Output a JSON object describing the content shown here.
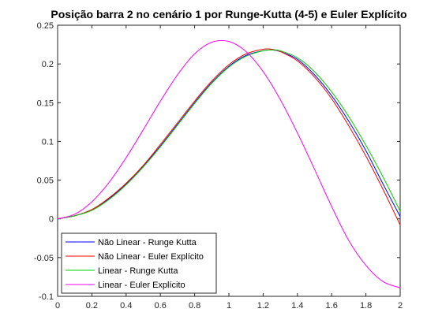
{
  "chart_data": {
    "type": "line",
    "title": "Posição barra 2 no cenário 1 por Runge-Kutta (4-5) e Euler Explícito",
    "xlabel": "",
    "ylabel": "",
    "xlim": [
      0,
      2
    ],
    "ylim": [
      -0.1,
      0.25
    ],
    "xticks": [
      0,
      0.2,
      0.4,
      0.6,
      0.8,
      1,
      1.2,
      1.4,
      1.6,
      1.8,
      2
    ],
    "xtick_labels": [
      "0",
      "0.2",
      "0.4",
      "0.6",
      "0.8",
      "1",
      "1.2",
      "1.4",
      "1.6",
      "1.8",
      "2"
    ],
    "yticks": [
      -0.1,
      -0.05,
      0,
      0.05,
      0.1,
      0.15,
      0.2,
      0.25
    ],
    "ytick_labels": [
      "-0.1",
      "-0.05",
      "0",
      "0.05",
      "0.1",
      "0.15",
      "0.2",
      "0.25"
    ],
    "grid": false,
    "legend_position": "bottom-left",
    "series": [
      {
        "name": "Não Linear - Runge Kutta",
        "color": "#0000ff",
        "x": [
          0,
          0.1,
          0.2,
          0.3,
          0.4,
          0.5,
          0.6,
          0.7,
          0.8,
          0.9,
          1.0,
          1.1,
          1.2,
          1.25,
          1.3,
          1.4,
          1.5,
          1.6,
          1.7,
          1.8,
          1.9,
          2.0
        ],
        "y": [
          0,
          0.004,
          0.012,
          0.026,
          0.045,
          0.068,
          0.094,
          0.122,
          0.15,
          0.176,
          0.197,
          0.211,
          0.217,
          0.218,
          0.216,
          0.206,
          0.186,
          0.159,
          0.126,
          0.088,
          0.045,
          0.003
        ]
      },
      {
        "name": "Não Linear - Euler Explícito",
        "color": "#ff0000",
        "x": [
          0,
          0.1,
          0.2,
          0.3,
          0.4,
          0.5,
          0.6,
          0.7,
          0.8,
          0.9,
          1.0,
          1.1,
          1.2,
          1.25,
          1.3,
          1.4,
          1.5,
          1.6,
          1.7,
          1.8,
          1.9,
          2.0
        ],
        "y": [
          0,
          0.004,
          0.012,
          0.027,
          0.046,
          0.069,
          0.096,
          0.124,
          0.152,
          0.178,
          0.199,
          0.213,
          0.219,
          0.219,
          0.216,
          0.204,
          0.183,
          0.155,
          0.12,
          0.081,
          0.038,
          -0.008
        ]
      },
      {
        "name": "Linear - Runge Kutta",
        "color": "#00cc00",
        "x": [
          0,
          0.1,
          0.2,
          0.3,
          0.4,
          0.5,
          0.6,
          0.7,
          0.8,
          0.9,
          1.0,
          1.1,
          1.2,
          1.25,
          1.3,
          1.4,
          1.5,
          1.6,
          1.7,
          1.8,
          1.9,
          2.0
        ],
        "y": [
          0,
          0.004,
          0.011,
          0.025,
          0.044,
          0.067,
          0.093,
          0.121,
          0.149,
          0.175,
          0.196,
          0.21,
          0.217,
          0.218,
          0.217,
          0.208,
          0.19,
          0.164,
          0.132,
          0.095,
          0.054,
          0.01
        ]
      },
      {
        "name": "Linear - Euler Explícito",
        "color": "#ff00ff",
        "x": [
          0,
          0.1,
          0.2,
          0.3,
          0.4,
          0.5,
          0.6,
          0.7,
          0.8,
          0.9,
          1.0,
          1.1,
          1.2,
          1.3,
          1.4,
          1.5,
          1.6,
          1.7,
          1.8,
          1.9,
          2.0
        ],
        "y": [
          0,
          0.006,
          0.022,
          0.047,
          0.079,
          0.115,
          0.152,
          0.186,
          0.213,
          0.228,
          0.229,
          0.216,
          0.19,
          0.154,
          0.111,
          0.064,
          0.016,
          -0.028,
          -0.06,
          -0.081,
          -0.089
        ]
      }
    ]
  }
}
